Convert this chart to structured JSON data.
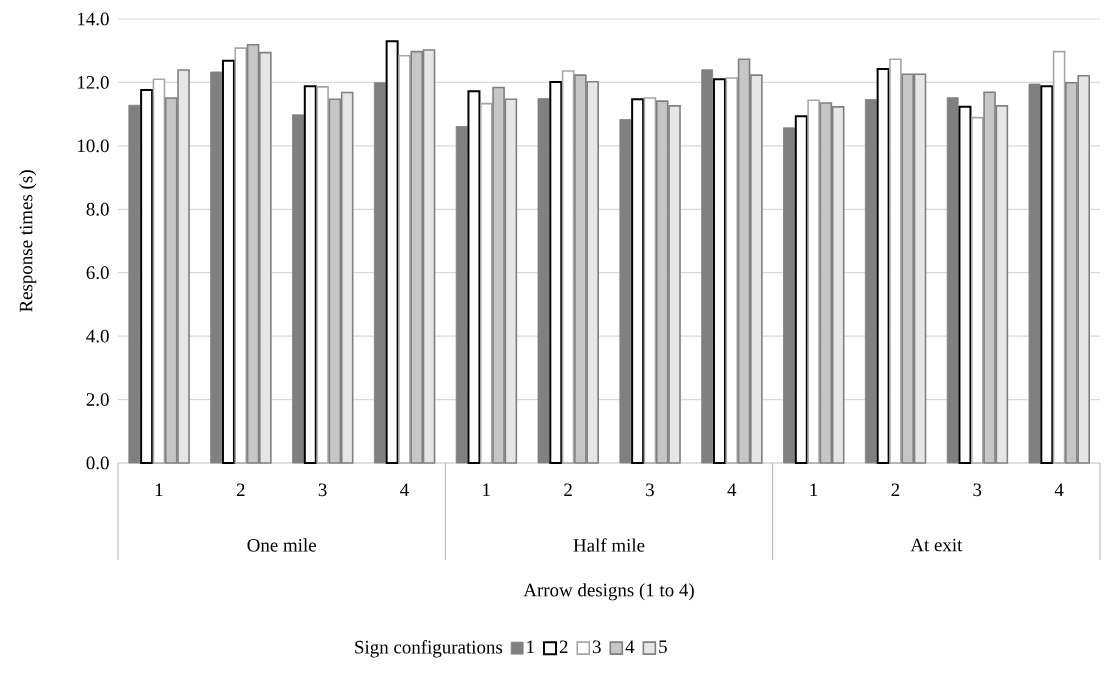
{
  "chart_data": {
    "type": "bar",
    "xlabel": "Arrow designs (1 to 4)",
    "ylabel": "Response times (s)",
    "legend_title": "Sign configurations",
    "categories": [
      "1",
      "2",
      "3",
      "4",
      "1",
      "2",
      "3",
      "4",
      "1",
      "2",
      "3",
      "4"
    ],
    "annotations": [
      "One mile",
      "Half mile",
      "At exit"
    ],
    "series": [
      {
        "name": "1",
        "color": "#808080",
        "values": [
          11.28,
          12.33,
          10.98,
          11.99,
          10.61,
          11.49,
          10.83,
          12.4,
          10.57,
          11.46,
          11.52,
          11.95
        ]
      },
      {
        "name": "2",
        "color": "#000000",
        "values": [
          11.76,
          12.68,
          11.88,
          13.3,
          11.72,
          12.01,
          11.47,
          12.1,
          10.93,
          12.42,
          11.23,
          11.88
        ]
      },
      {
        "name": "3",
        "color": "#a6a6a6",
        "values": [
          12.1,
          13.08,
          11.86,
          12.84,
          11.33,
          12.36,
          11.51,
          12.14,
          11.44,
          12.73,
          10.89,
          12.97
        ]
      },
      {
        "name": "4",
        "color": "#808080",
        "values": [
          11.51,
          13.19,
          11.47,
          12.97,
          11.84,
          12.23,
          11.41,
          12.73,
          11.35,
          12.26,
          11.69,
          11.99
        ]
      },
      {
        "name": "5",
        "color": "#808080",
        "values": [
          12.39,
          12.94,
          11.68,
          13.02,
          11.47,
          12.02,
          11.26,
          12.23,
          11.23,
          12.26,
          11.26,
          12.21
        ]
      }
    ],
    "ylim": [
      0,
      14
    ],
    "yticks": [
      {
        "value": 0,
        "label": "0.0"
      },
      {
        "value": 2,
        "label": "2.0"
      },
      {
        "value": 4,
        "label": "4.0"
      },
      {
        "value": 6,
        "label": "6.0"
      },
      {
        "value": 8,
        "label": "8.0"
      },
      {
        "value": 10,
        "label": "10.0"
      },
      {
        "value": 12,
        "label": "12.0"
      },
      {
        "value": 14,
        "label": "14.0"
      }
    ],
    "grid": "y",
    "legend": "bottom"
  }
}
